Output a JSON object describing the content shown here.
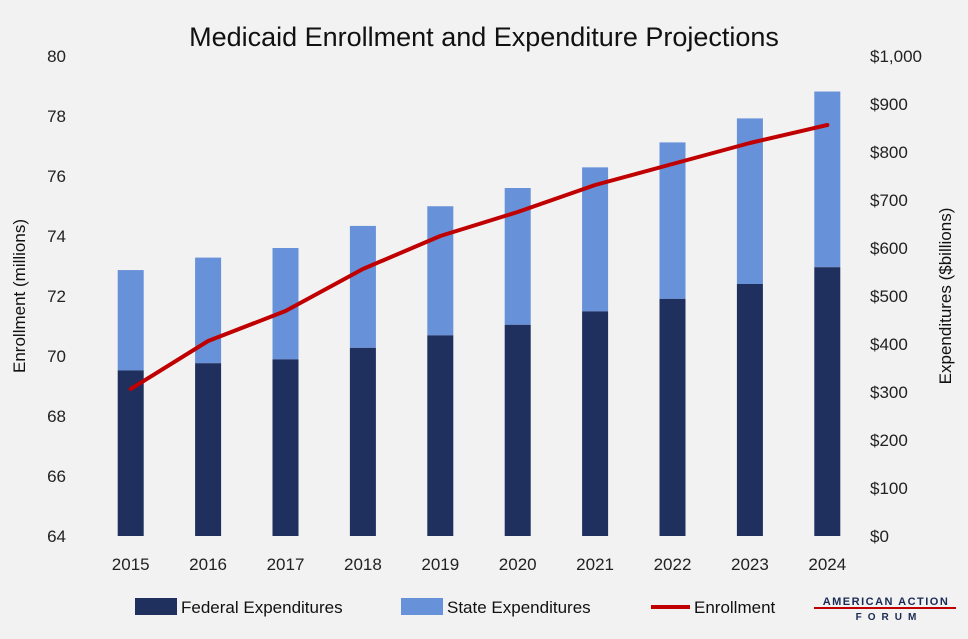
{
  "chart_data": {
    "type": "bar",
    "title": "Medicaid Enrollment and Expenditure Projections",
    "categories": [
      "2015",
      "2016",
      "2017",
      "2018",
      "2019",
      "2020",
      "2021",
      "2022",
      "2023",
      "2024"
    ],
    "series": [
      {
        "name": "Federal Expenditures",
        "kind": "stacked-bar",
        "axis": "right",
        "color": "#1f2f5e",
        "values": [
          345,
          360,
          368,
          392,
          418,
          440,
          468,
          494,
          525,
          560
        ]
      },
      {
        "name": "State Expenditures",
        "kind": "stacked-bar",
        "axis": "right",
        "color": "#6791d9",
        "values": [
          209,
          220,
          232,
          254,
          269,
          285,
          300,
          326,
          345,
          366
        ]
      },
      {
        "name": "Enrollment",
        "kind": "line",
        "axis": "left",
        "color": "#c00000",
        "values": [
          68.9,
          70.5,
          71.5,
          72.9,
          74.0,
          74.8,
          75.7,
          76.4,
          77.1,
          77.7
        ]
      }
    ],
    "y_left": {
      "label": "Enrollment (millions)",
      "min": 64,
      "max": 80,
      "ticks": [
        "64",
        "66",
        "68",
        "70",
        "72",
        "74",
        "76",
        "78",
        "80"
      ]
    },
    "y_right": {
      "label": "Expenditures ($billions)",
      "min": 0,
      "max": 1000,
      "ticks": [
        "$0",
        "$100",
        "$200",
        "$300",
        "$400",
        "$500",
        "$600",
        "$700",
        "$800",
        "$900",
        "$1,000"
      ]
    },
    "legend_position": "bottom"
  },
  "logo": {
    "line1": "AMERICAN ACTION",
    "line2": "FORUM",
    "accent_color": "#c00000",
    "text_color": "#1a2a55"
  }
}
